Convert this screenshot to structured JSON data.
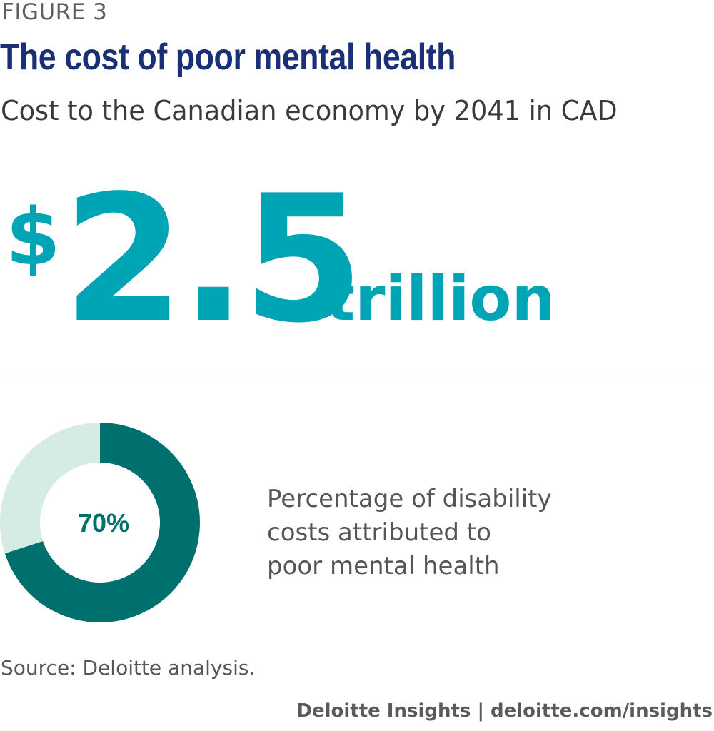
{
  "figure_label": "FIGURE 3",
  "title": "The cost of poor mental health",
  "subtitle": "Cost to the Canadian economy by 2041 in CAD",
  "headline": {
    "currency": "$",
    "value": "2.5",
    "unit": "trillion",
    "color": "#00a5b5"
  },
  "chart_data": {
    "type": "pie",
    "style": "donut",
    "categories": [
      "Poor mental health",
      "Other"
    ],
    "values": [
      70,
      30
    ],
    "center_label": "70%",
    "description": [
      "Percentage of disability",
      "costs attributed to",
      "poor mental health"
    ],
    "colors": {
      "primary": "#00706e",
      "remainder": "#d5ebe4",
      "label": "#00706e"
    }
  },
  "source": "Source: Deloitte analysis.",
  "footer": "Deloitte Insights | deloitte.com/insights",
  "colors": {
    "title": "#1a2f78",
    "divider": "#4cb85c"
  }
}
